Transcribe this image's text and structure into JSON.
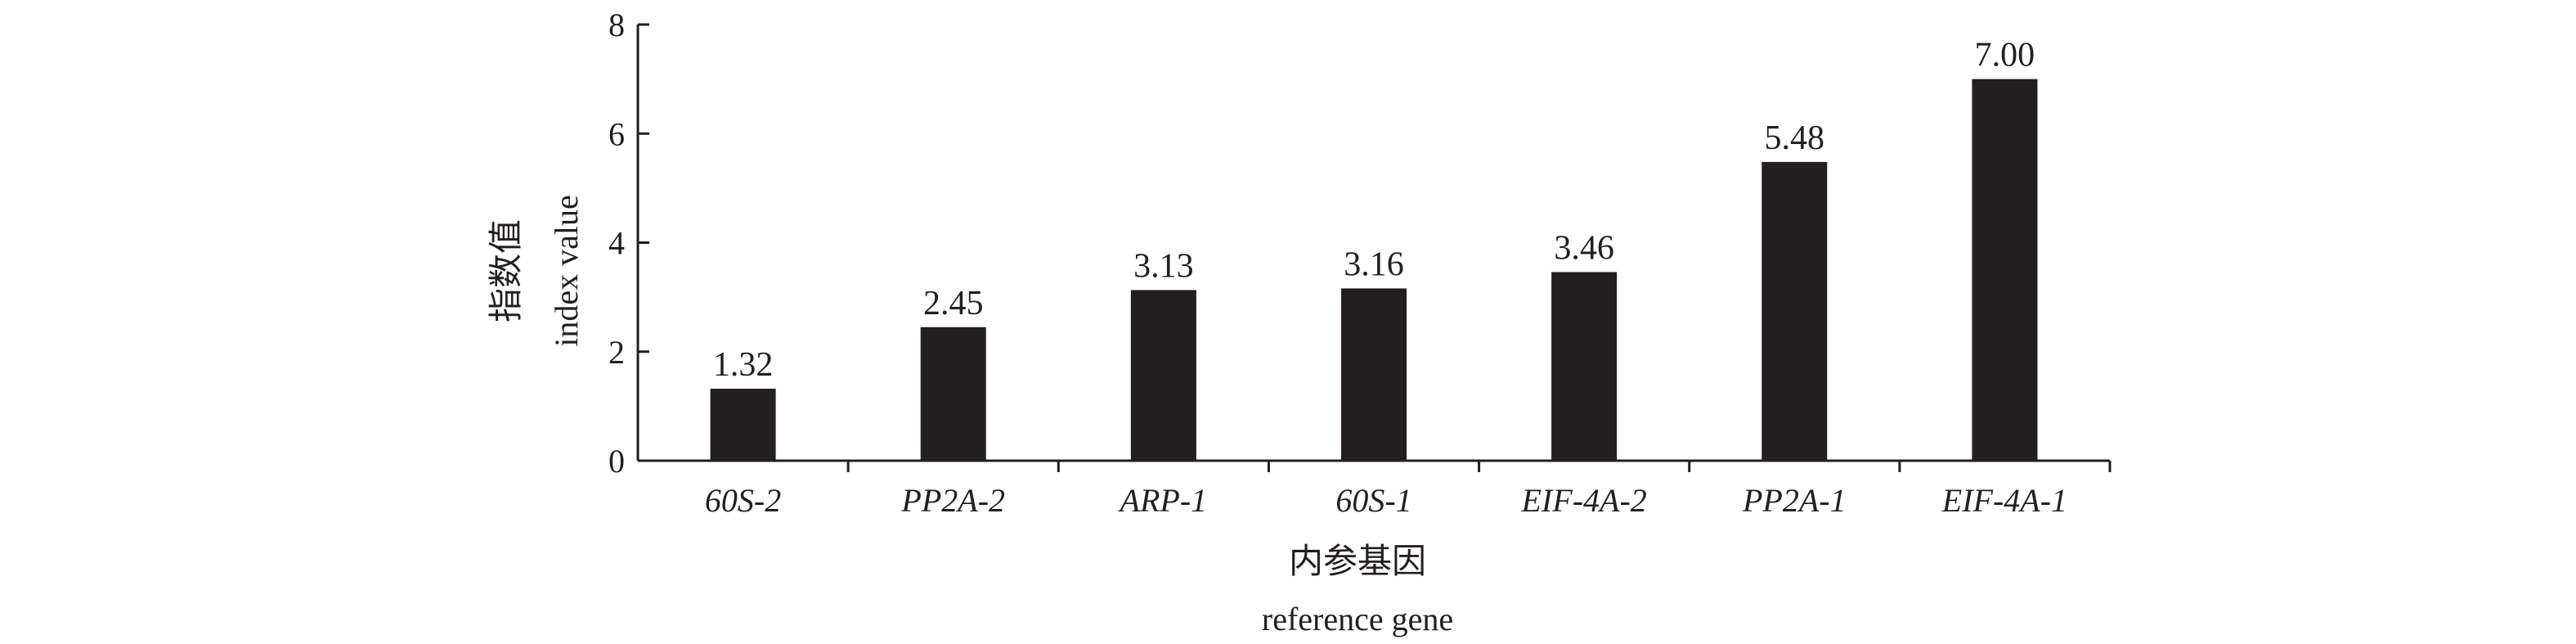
{
  "chart_data": {
    "type": "bar",
    "categories": [
      "60S-2",
      "PP2A-2",
      "ARP-1",
      "60S-1",
      "EIF-4A-2",
      "PP2A-1",
      "EIF-4A-1"
    ],
    "values": [
      1.32,
      2.45,
      3.13,
      3.16,
      3.46,
      5.48,
      7.0
    ],
    "value_labels": [
      "1.32",
      "2.45",
      "3.13",
      "3.16",
      "3.46",
      "5.48",
      "7.00"
    ],
    "ylim": [
      0,
      8
    ],
    "yticks": [
      0,
      2,
      4,
      6,
      8
    ],
    "ytick_labels": [
      "0",
      "2",
      "4",
      "6",
      "8"
    ],
    "ylabel": [
      "指数值",
      "index value"
    ],
    "xlabel": [
      "内参基因",
      "reference gene"
    ],
    "bar_color": "#231f20",
    "axis_color": "#231f20",
    "grid": false,
    "legend": "none"
  }
}
